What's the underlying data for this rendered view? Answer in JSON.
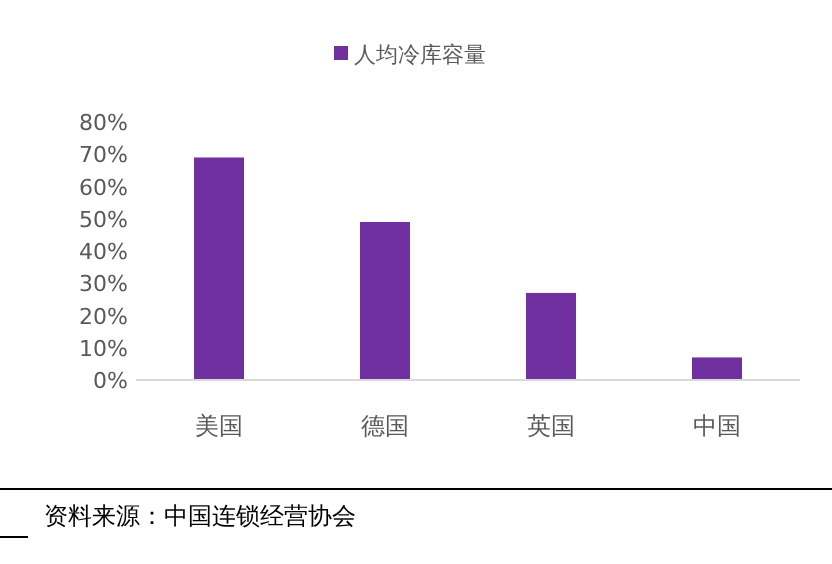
{
  "chart_data": {
    "type": "bar",
    "categories": [
      "美国",
      "德国",
      "英国",
      "中国"
    ],
    "series": [
      {
        "name": "人均冷库容量",
        "color": "#7030a0",
        "values": [
          69,
          49,
          27,
          7
        ]
      }
    ],
    "ylim": [
      0,
      80
    ],
    "yticks": [
      {
        "value": 0,
        "label": "0%"
      },
      {
        "value": 10,
        "label": "10%"
      },
      {
        "value": 20,
        "label": "20%"
      },
      {
        "value": 30,
        "label": "30%"
      },
      {
        "value": 40,
        "label": "40%"
      },
      {
        "value": 50,
        "label": "50%"
      },
      {
        "value": 60,
        "label": "60%"
      },
      {
        "value": 70,
        "label": "70%"
      },
      {
        "value": 80,
        "label": "80%"
      }
    ],
    "legend": "top",
    "annotations": [
      "资料来源：中国连锁经营协会"
    ]
  }
}
